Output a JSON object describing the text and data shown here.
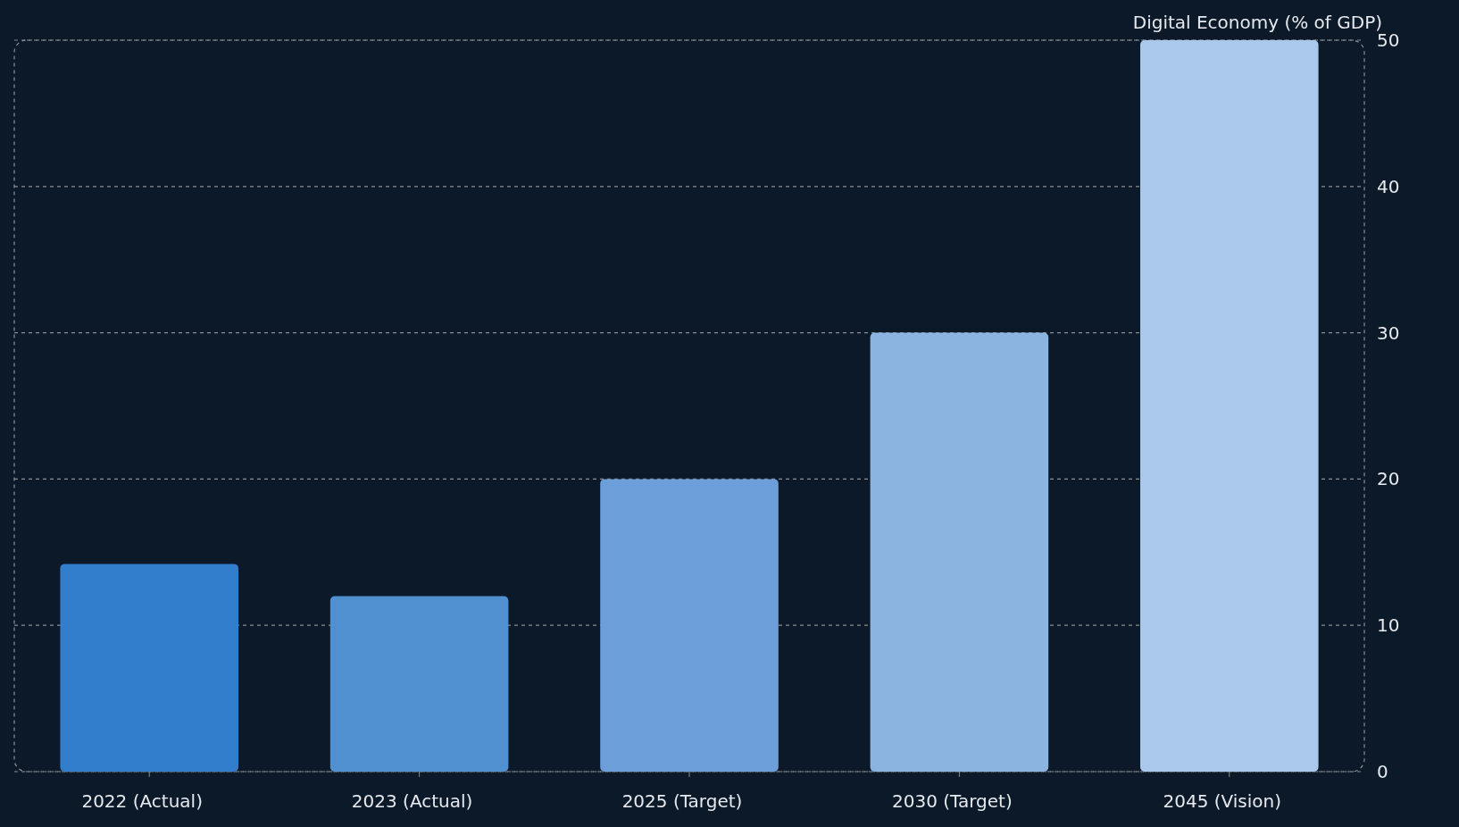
{
  "chart_data": {
    "type": "bar",
    "ylabel": "Digital Economy (% of GDP)",
    "categories": [
      "2022 (Actual)",
      "2023 (Actual)",
      "2025 (Target)",
      "2030 (Target)",
      "2045 (Vision)"
    ],
    "values": [
      14.2,
      12,
      20,
      30,
      50
    ],
    "colors": [
      "#337dcd",
      "#508fd0",
      "#6c9fda",
      "#8bb5e0",
      "#a9c8ec"
    ],
    "ylim": [
      0,
      50
    ],
    "yticks": [
      0,
      10,
      20,
      30,
      40,
      50
    ],
    "grid": "y"
  }
}
